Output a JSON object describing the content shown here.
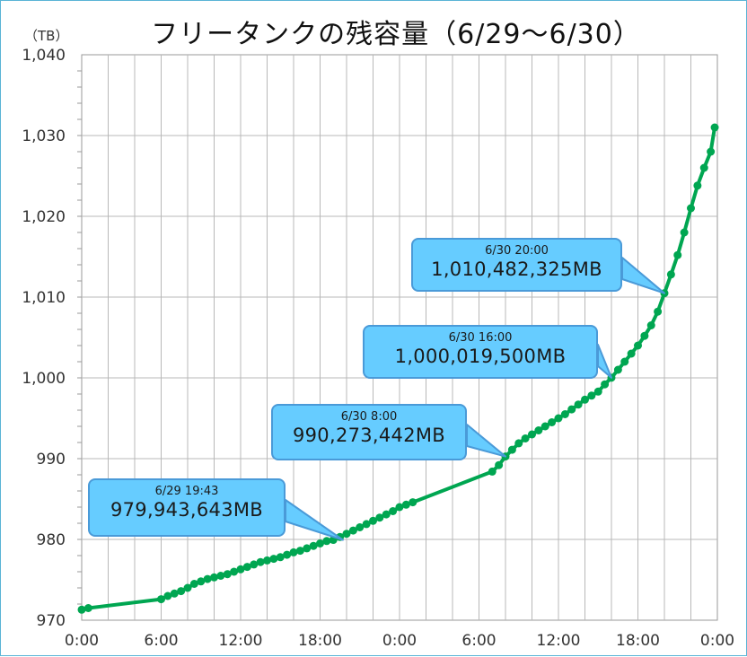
{
  "chart_data": {
    "type": "line",
    "title": "フリータンクの残容量（6/29〜6/30）",
    "ylabel": "（TB）",
    "xlabel": "",
    "ylim": [
      970,
      1040
    ],
    "yticks": [
      "1,040",
      "1,030",
      "1,020",
      "1,010",
      "1,000",
      "990",
      "980",
      "970"
    ],
    "ytick_values": [
      1040,
      1030,
      1020,
      1010,
      1000,
      990,
      980,
      970
    ],
    "xlim": [
      0,
      48
    ],
    "xticks": [
      "0:00",
      "6:00",
      "12:00",
      "18:00",
      "0:00",
      "6:00",
      "12:00",
      "18:00",
      "0:00"
    ],
    "xtick_values": [
      0,
      6,
      12,
      18,
      24,
      30,
      36,
      42,
      48
    ],
    "grid": true,
    "series_color": "#00a651",
    "callout_color": "#66ccff",
    "callout_border_color": "#4a9ad8",
    "series": [
      {
        "x": [
          0,
          0.5,
          6,
          6.5,
          7,
          7.5,
          8,
          8.5,
          9,
          9.5,
          10,
          10.5,
          11,
          11.5,
          12,
          12.5,
          13,
          13.5,
          14,
          14.5,
          15,
          15.5,
          16,
          16.5,
          17,
          17.5,
          18,
          18.5,
          19,
          19.5,
          20,
          20.5,
          21,
          21.5,
          22,
          22.5,
          23,
          23.5,
          24,
          24.5,
          25,
          31,
          31.5,
          32,
          32.5,
          33,
          33.5,
          34,
          34.5,
          35,
          35.5,
          36,
          36.5,
          37,
          37.5,
          38,
          38.5,
          39,
          39.5,
          40,
          40.5,
          41,
          41.5,
          42,
          42.5,
          43,
          43.5,
          44,
          44.5,
          45,
          45.5,
          46,
          46.5,
          47,
          47.5,
          47.8
        ],
        "y": [
          971.3,
          971.5,
          972.6,
          973.0,
          973.3,
          973.6,
          974.0,
          974.5,
          974.8,
          975.1,
          975.3,
          975.5,
          975.7,
          976.0,
          976.3,
          976.6,
          976.9,
          977.2,
          977.4,
          977.6,
          977.8,
          978.1,
          978.4,
          978.6,
          978.9,
          979.2,
          979.5,
          979.8,
          979.94,
          980.3,
          980.7,
          981.1,
          981.5,
          981.9,
          982.3,
          982.7,
          983.1,
          983.5,
          984.0,
          984.3,
          984.6,
          988.4,
          989.2,
          990.27,
          991.1,
          991.9,
          992.5,
          993.0,
          993.5,
          994.0,
          994.5,
          995.0,
          995.5,
          996.1,
          996.7,
          997.3,
          997.8,
          998.3,
          999.2,
          1000.02,
          1001.0,
          1002.0,
          1003.0,
          1004.0,
          1005.2,
          1006.5,
          1008.2,
          1010.48,
          1012.8,
          1015.2,
          1018.0,
          1021.0,
          1023.8,
          1026.0,
          1028.0,
          1031.0
        ]
      }
    ],
    "annotations": [
      {
        "time": "6/29 19:43",
        "value": "979,943,643MB",
        "x": 19.72,
        "y": 979.94
      },
      {
        "time": "6/30 8:00",
        "value": "990,273,442MB",
        "x": 32,
        "y": 990.27
      },
      {
        "time": "6/30 16:00",
        "value": "1,000,019,500MB",
        "x": 40,
        "y": 1000.02
      },
      {
        "time": "6/30 20:00",
        "value": "1,010,482,325MB",
        "x": 44,
        "y": 1010.48
      }
    ]
  }
}
